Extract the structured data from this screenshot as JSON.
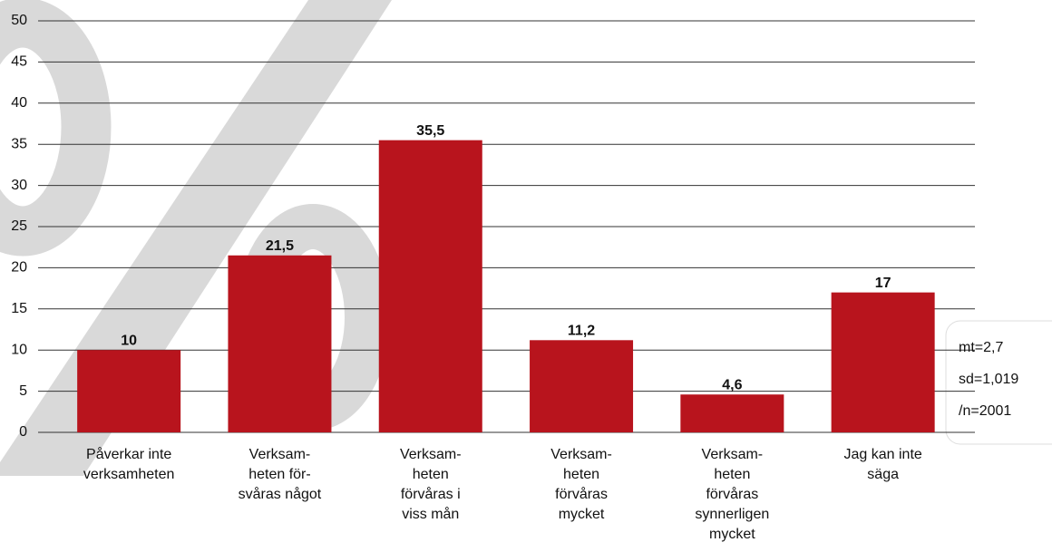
{
  "chart_data": {
    "type": "bar",
    "categories": [
      [
        "Påverkar inte",
        "verksamheten"
      ],
      [
        "Verksam-",
        "heten för-",
        "svåras något"
      ],
      [
        "Verksam-",
        "heten",
        "förvåras i",
        "viss mån"
      ],
      [
        "Verksam-",
        "heten",
        "förvåras",
        "mycket"
      ],
      [
        "Verksam-",
        "heten",
        "förvåras",
        "synnerligen",
        "mycket"
      ],
      [
        "Jag kan inte",
        "säga"
      ]
    ],
    "values": [
      10,
      21.5,
      35.5,
      11.2,
      4.6,
      17
    ],
    "value_labels": [
      "10",
      "21,5",
      "35,5",
      "11,2",
      "4,6",
      "17"
    ],
    "color": "#b8141d",
    "ylim": [
      0,
      50
    ],
    "yticks": [
      0,
      5,
      10,
      15,
      20,
      25,
      30,
      35,
      40,
      45,
      50
    ],
    "grid": true,
    "annotations": [
      "mt=2,7",
      "sd=1,019",
      "/n=2001"
    ]
  }
}
